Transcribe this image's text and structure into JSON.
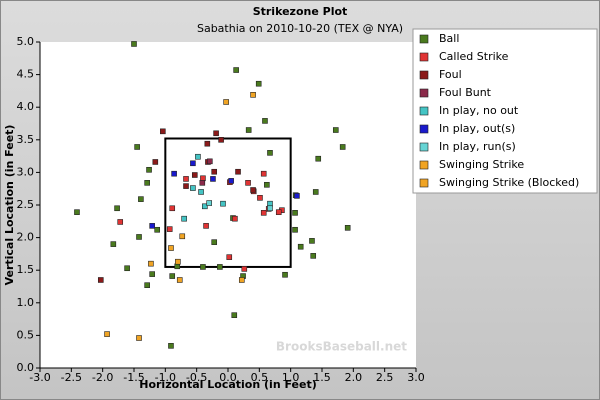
{
  "chart_data": {
    "type": "scatter",
    "title": "Strikezone Plot",
    "subtitle": "Sabathia on 2010-10-20 (TEX @ NYA)",
    "x_label": "Horizontal Location (in Feet)",
    "y_label": "Vertical Location (in Feet)",
    "watermark": "BrooksBaseball.net",
    "xlim": [
      -3.0,
      3.0
    ],
    "ylim": [
      0.0,
      5.0
    ],
    "xticks": [
      {
        "value": -3.0,
        "label": "-3.0"
      },
      {
        "value": -2.5,
        "label": "-2.5"
      },
      {
        "value": -2.0,
        "label": "-2.0"
      },
      {
        "value": -1.5,
        "label": "-1.5"
      },
      {
        "value": -1.0,
        "label": "-1.0"
      },
      {
        "value": -0.5,
        "label": "-0.5"
      },
      {
        "value": 0.0,
        "label": "0.0"
      },
      {
        "value": 0.5,
        "label": "0.5"
      },
      {
        "value": 1.0,
        "label": "1.0"
      },
      {
        "value": 1.5,
        "label": "1.5"
      },
      {
        "value": 2.0,
        "label": "2.0"
      },
      {
        "value": 2.5,
        "label": "2.5"
      },
      {
        "value": 3.0,
        "label": "3.0"
      }
    ],
    "yticks": [
      {
        "value": 0.0,
        "label": "0.0"
      },
      {
        "value": 0.5,
        "label": "0.5"
      },
      {
        "value": 1.0,
        "label": "1.0"
      },
      {
        "value": 1.5,
        "label": "1.5"
      },
      {
        "value": 2.0,
        "label": "2.0"
      },
      {
        "value": 2.5,
        "label": "2.5"
      },
      {
        "value": 3.0,
        "label": "3.0"
      },
      {
        "value": 3.5,
        "label": "3.5"
      },
      {
        "value": 4.0,
        "label": "4.0"
      },
      {
        "value": 4.5,
        "label": "4.5"
      },
      {
        "value": 5.0,
        "label": "5.0"
      }
    ],
    "strike_zone": {
      "x": [
        -1.0,
        1.0
      ],
      "y": [
        1.55,
        3.52
      ]
    },
    "legend": "top-right",
    "series": [
      {
        "name": "Ball",
        "color": "#4a7a1e",
        "x": [
          -1.5,
          0.13,
          0.49,
          0.59,
          0.33,
          1.72,
          1.83,
          -1.45,
          1.44,
          -1.26,
          0.67,
          0.62,
          1.4,
          -1.29,
          -1.39,
          1.08,
          -2.41,
          -1.77,
          1.07,
          1.91,
          1.07,
          -1.13,
          0.08,
          -0.22,
          -1.42,
          -1.83,
          1.34,
          1.16,
          1.36,
          -1.61,
          -0.81,
          -1.29,
          -0.89,
          0.91,
          -1.21,
          -0.4,
          -0.13,
          0.24,
          0.1,
          -0.91
        ],
        "y": [
          4.97,
          4.57,
          4.36,
          3.79,
          3.65,
          3.65,
          3.39,
          3.39,
          3.21,
          3.04,
          3.3,
          2.81,
          2.7,
          2.84,
          2.59,
          2.65,
          2.39,
          2.45,
          2.38,
          2.15,
          2.12,
          2.12,
          2.3,
          1.93,
          2.01,
          1.9,
          1.95,
          1.86,
          1.72,
          1.53,
          1.56,
          1.27,
          1.41,
          1.43,
          1.44,
          1.55,
          1.55,
          1.41,
          0.81,
          0.34
        ]
      },
      {
        "name": "Called Strike",
        "color": "#e03434",
        "x": [
          0.03,
          0.32,
          0.41,
          0.51,
          0.65,
          0.57,
          0.86,
          0.81,
          0.57,
          -0.4,
          -0.67,
          -0.35,
          -0.89,
          -0.93,
          0.11,
          -1.72,
          0.02,
          0.26
        ],
        "y": [
          2.85,
          2.84,
          2.71,
          2.61,
          2.44,
          2.38,
          2.42,
          2.39,
          2.98,
          2.91,
          2.9,
          2.18,
          2.45,
          2.13,
          2.29,
          2.24,
          1.7,
          1.52
        ]
      },
      {
        "name": "Foul",
        "color": "#8b1a1a",
        "x": [
          -1.04,
          -0.19,
          -0.33,
          -0.11,
          -0.32,
          -0.22,
          -0.53,
          -0.67,
          0.16,
          0.4,
          -2.03,
          -1.16
        ],
        "y": [
          3.63,
          3.6,
          3.44,
          3.5,
          3.16,
          3.01,
          2.96,
          2.79,
          3.01,
          2.73,
          1.35,
          3.16
        ]
      },
      {
        "name": "Foul Bunt",
        "color": "#8b2a4a",
        "x": [
          -0.29,
          -0.41
        ],
        "y": [
          3.17,
          2.84
        ]
      },
      {
        "name": "In play, no out",
        "color": "#44c4c4",
        "x": [
          -0.48,
          -0.56,
          -0.43,
          -0.37,
          -0.08,
          -0.7,
          0.67
        ],
        "y": [
          3.24,
          2.76,
          2.7,
          2.48,
          2.52,
          2.29,
          2.52
        ]
      },
      {
        "name": "In play, out(s)",
        "color": "#1a1acc",
        "x": [
          -0.56,
          -0.86,
          -0.24,
          0.05,
          1.1,
          -1.21
        ],
        "y": [
          3.14,
          2.98,
          2.9,
          2.87,
          2.64,
          2.18
        ]
      },
      {
        "name": "In play, run(s)",
        "color": "#66d4d4",
        "x": [
          -0.3,
          0.67
        ],
        "y": [
          2.53,
          2.45
        ]
      },
      {
        "name": "Swinging Strike",
        "color": "#f0a424",
        "x": [
          -0.03,
          0.4,
          -1.93,
          -1.42,
          -0.91,
          -0.73,
          -0.8,
          -0.77,
          -1.23
        ],
        "y": [
          4.08,
          4.19,
          0.52,
          0.46,
          1.84,
          2.02,
          1.63,
          1.35,
          1.6
        ]
      },
      {
        "name": "Swinging Strike (Blocked)",
        "color": "#f0a424",
        "x": [
          0.22
        ],
        "y": [
          1.35
        ]
      }
    ]
  }
}
